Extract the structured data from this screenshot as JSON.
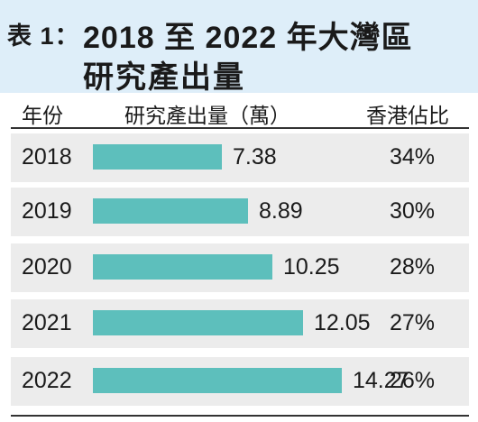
{
  "title": {
    "prefix": "表 1：",
    "line1": "2018 至 2022 年大灣區",
    "line2": "研究產出量"
  },
  "columns": {
    "year": "年份",
    "output": "研究產出量（萬）",
    "share": "香港佔比"
  },
  "rows": [
    {
      "year": "2018",
      "value_label": "7.38",
      "share": "34%"
    },
    {
      "year": "2019",
      "value_label": "8.89",
      "share": "30%"
    },
    {
      "year": "2020",
      "value_label": "10.25",
      "share": "28%"
    },
    {
      "year": "2021",
      "value_label": "12.05",
      "share": "27%"
    },
    {
      "year": "2022",
      "value_label": "14.27",
      "share": "26%"
    }
  ],
  "colors": {
    "bar": "#5dbfbc",
    "title_bg": "#deeef9",
    "row_band": "#ececec"
  },
  "chart_data": {
    "type": "bar",
    "orientation": "horizontal",
    "categories": [
      "2018",
      "2019",
      "2020",
      "2021",
      "2022"
    ],
    "values": [
      7.38,
      8.89,
      10.25,
      12.05,
      14.27
    ],
    "hk_share_percent": [
      34,
      30,
      28,
      27,
      26
    ],
    "grid": false
  }
}
